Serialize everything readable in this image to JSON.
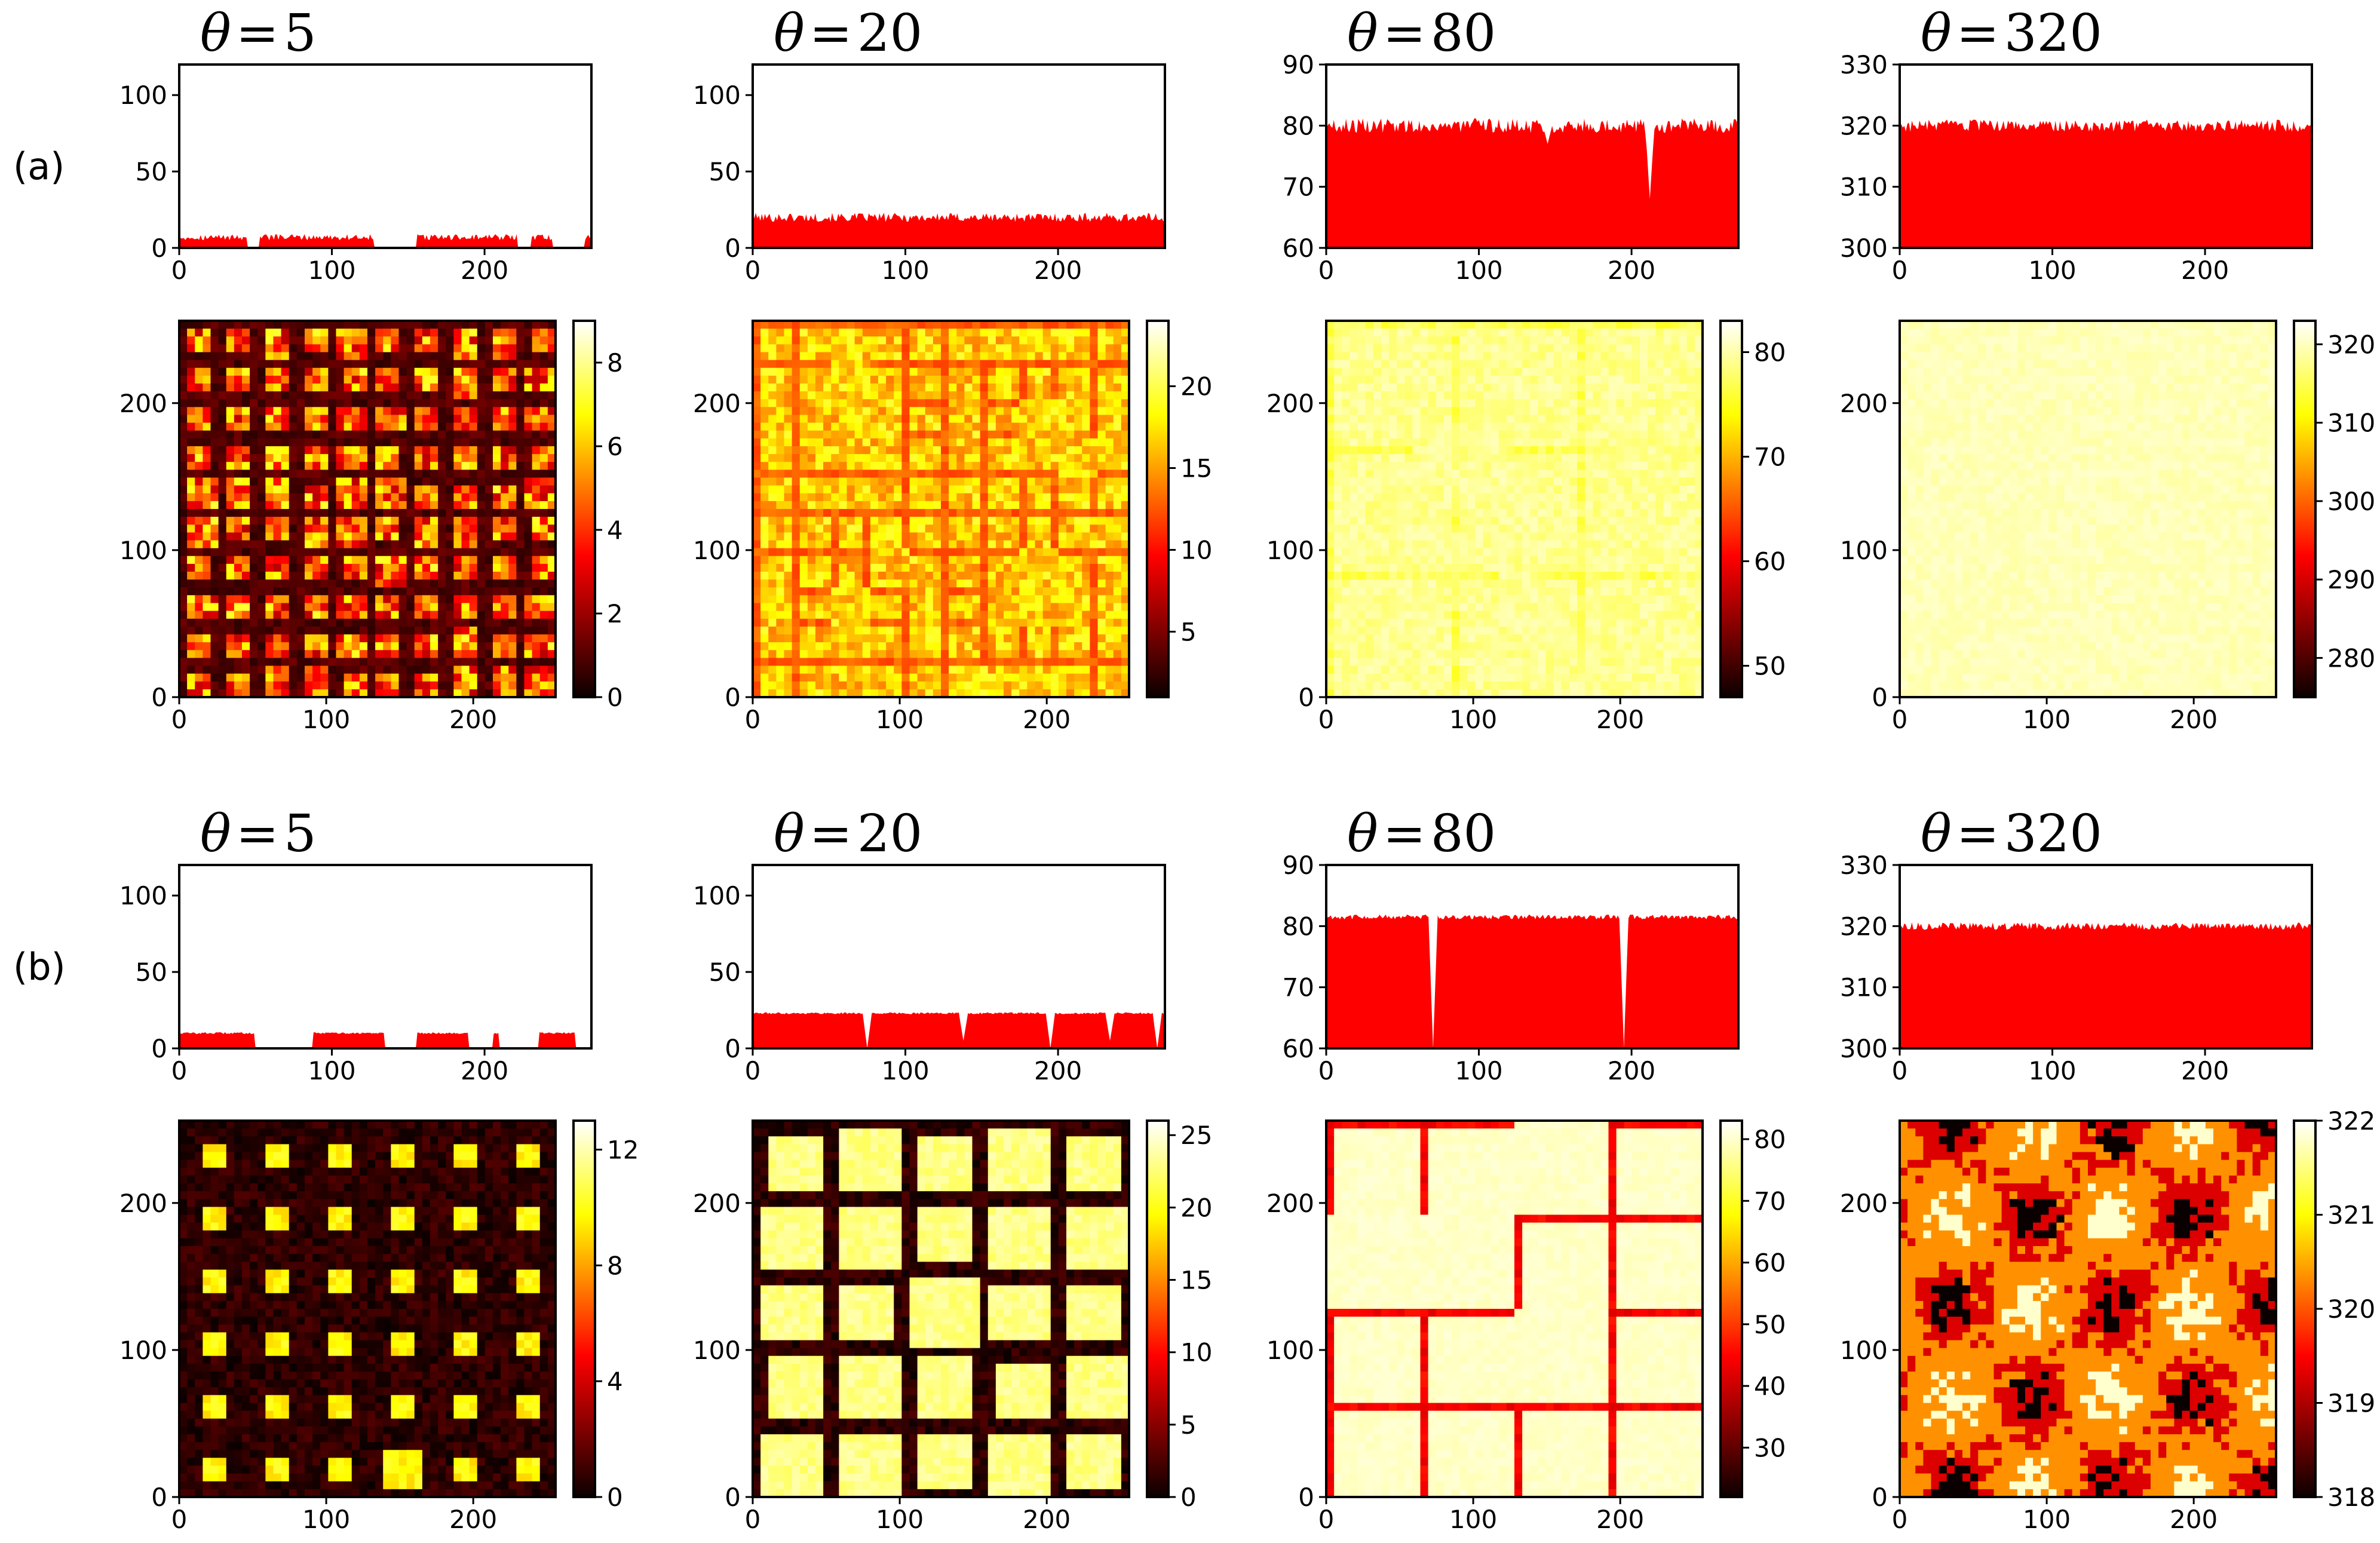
{
  "chart_data": {
    "type": "heatmap",
    "description_labels": [
      "(a)",
      "(b)"
    ],
    "rows": [
      {
        "label": "(a)",
        "panels": [
          {
            "title_symbol": "θ",
            "title_eq": "=",
            "title_value": "5",
            "profile": {
              "type": "area",
              "color": "#ff0000",
              "xlim": [
                0,
                270
              ],
              "ylim": [
                0,
                120
              ],
              "xticks": [
                "0",
                "100",
                "200"
              ],
              "yticks": [
                "0",
                "50",
                "100"
              ],
              "ytick_values": [
                0,
                50,
                100
              ],
              "base": 0,
              "level": 7,
              "noise": 2,
              "gaps": [
                [
                  45,
                  52
                ],
                [
                  128,
                  155
                ],
                [
                  222,
                  230
                ],
                [
                  245,
                  265
                ]
              ]
            },
            "map": {
              "type": "heatmap",
              "xlim": [
                0,
                256
              ],
              "ylim": [
                0,
                256
              ],
              "xticks": [
                "0",
                "100",
                "200"
              ],
              "yticks": [
                "0",
                "100",
                "200"
              ],
              "pattern": "grains",
              "cells": 10,
              "gap": 0.16,
              "noise": 0.55,
              "bg_value": 0.05,
              "seed": 11,
              "colorbar": {
                "min": 0,
                "max": 9,
                "ticks": [
                  "0",
                  "2",
                  "4",
                  "6",
                  "8"
                ],
                "tick_values": [
                  0,
                  2,
                  4,
                  6,
                  8
                ]
              }
            }
          },
          {
            "title_symbol": "θ",
            "title_eq": "=",
            "title_value": "20",
            "profile": {
              "type": "area",
              "color": "#ff0000",
              "xlim": [
                0,
                270
              ],
              "ylim": [
                0,
                120
              ],
              "xticks": [
                "0",
                "100",
                "200"
              ],
              "yticks": [
                "0",
                "50",
                "100"
              ],
              "ytick_values": [
                0,
                50,
                100
              ],
              "base": 0,
              "level": 20,
              "noise": 3,
              "gaps": []
            },
            "map": {
              "type": "heatmap",
              "xlim": [
                0,
                256
              ],
              "ylim": [
                0,
                256
              ],
              "xticks": [
                "0",
                "100",
                "200"
              ],
              "yticks": [
                "0",
                "100",
                "200"
              ],
              "pattern": "grains",
              "cells": 10,
              "gap": 0.07,
              "noise": 0.25,
              "bg_value": 0.45,
              "seed": 23,
              "colorbar": {
                "min": 1,
                "max": 24,
                "ticks": [
                  "5",
                  "10",
                  "15",
                  "20"
                ],
                "tick_values": [
                  5,
                  10,
                  15,
                  20
                ]
              }
            }
          },
          {
            "title_symbol": "θ",
            "title_eq": "=",
            "title_value": "80",
            "profile": {
              "type": "area",
              "color": "#ff0000",
              "xlim": [
                0,
                270
              ],
              "ylim": [
                60,
                90
              ],
              "xticks": [
                "0",
                "100",
                "200"
              ],
              "yticks": [
                "60",
                "70",
                "80",
                "90"
              ],
              "ytick_values": [
                60,
                70,
                80,
                90
              ],
              "base": 60,
              "level": 80,
              "noise": 1.2,
              "dips": [
                [
                  212,
                  68
                ],
                [
                  145,
                  77
                ]
              ]
            },
            "map": {
              "type": "heatmap",
              "xlim": [
                0,
                256
              ],
              "ylim": [
                0,
                256
              ],
              "xticks": [
                "0",
                "100",
                "200"
              ],
              "yticks": [
                "0",
                "100",
                "200"
              ],
              "pattern": "grains",
              "cells": 9,
              "gap": 0.02,
              "noise": 0.08,
              "bg_value": 0.78,
              "seed": 37,
              "base_value": 0.93,
              "colorbar": {
                "min": 47,
                "max": 83,
                "ticks": [
                  "50",
                  "60",
                  "70",
                  "80"
                ],
                "tick_values": [
                  50,
                  60,
                  70,
                  80
                ]
              }
            }
          },
          {
            "title_symbol": "θ",
            "title_eq": "=",
            "title_value": "320",
            "profile": {
              "type": "area",
              "color": "#ff0000",
              "xlim": [
                0,
                270
              ],
              "ylim": [
                300,
                330
              ],
              "xticks": [
                "0",
                "100",
                "200"
              ],
              "yticks": [
                "300",
                "310",
                "320",
                "330"
              ],
              "ytick_values": [
                300,
                310,
                320,
                330
              ],
              "base": 300,
              "level": 320,
              "noise": 1.0,
              "gaps": []
            },
            "map": {
              "type": "heatmap",
              "xlim": [
                0,
                256
              ],
              "ylim": [
                0,
                256
              ],
              "xticks": [
                "0",
                "100",
                "200"
              ],
              "yticks": [
                "0",
                "100",
                "200"
              ],
              "pattern": "smooth",
              "noise": 0.04,
              "base_value": 0.95,
              "seed": 41,
              "colorbar": {
                "min": 275,
                "max": 323,
                "ticks": [
                  "280",
                  "290",
                  "300",
                  "310",
                  "320"
                ],
                "tick_values": [
                  280,
                  290,
                  300,
                  310,
                  320
                ]
              }
            }
          }
        ]
      },
      {
        "label": "(b)",
        "panels": [
          {
            "title_symbol": "θ",
            "title_eq": "=",
            "title_value": "5",
            "profile": {
              "type": "area",
              "color": "#ff0000",
              "xlim": [
                0,
                270
              ],
              "ylim": [
                0,
                120
              ],
              "xticks": [
                "0",
                "100",
                "200"
              ],
              "yticks": [
                "0",
                "50",
                "100"
              ],
              "ytick_values": [
                0,
                50,
                100
              ],
              "base": 0,
              "level": 10,
              "noise": 0.6,
              "gaps": [
                [
                  50,
                  87
                ],
                [
                  135,
                  155
                ],
                [
                  190,
                  205
                ],
                [
                  210,
                  235
                ],
                [
                  260,
                  270
                ]
              ]
            },
            "map": {
              "type": "heatmap",
              "xlim": [
                0,
                256
              ],
              "ylim": [
                0,
                256
              ],
              "xticks": [
                "0",
                "100",
                "200"
              ],
              "yticks": [
                "0",
                "100",
                "200"
              ],
              "pattern": "grains",
              "cells": 6,
              "gap": 0.28,
              "noise": 0.12,
              "bg_value": 0.0,
              "seed": 5,
              "colorbar": {
                "min": 0,
                "max": 13,
                "ticks": [
                  "0",
                  "4",
                  "8",
                  "12"
                ],
                "tick_values": [
                  0,
                  4,
                  8,
                  12
                ]
              }
            }
          },
          {
            "title_symbol": "θ",
            "title_eq": "=",
            "title_value": "20",
            "profile": {
              "type": "area",
              "color": "#ff0000",
              "xlim": [
                0,
                270
              ],
              "ylim": [
                0,
                120
              ],
              "xticks": [
                "0",
                "100",
                "200"
              ],
              "yticks": [
                "0",
                "50",
                "100"
              ],
              "ytick_values": [
                0,
                50,
                100
              ],
              "base": 0,
              "level": 23,
              "noise": 0.6,
              "dips": [
                [
                  75,
                  0
                ],
                [
                  138,
                  5
                ],
                [
                  195,
                  0
                ],
                [
                  234,
                  5
                ],
                [
                  265,
                  0
                ]
              ]
            },
            "map": {
              "type": "heatmap",
              "xlim": [
                0,
                256
              ],
              "ylim": [
                0,
                256
              ],
              "xticks": [
                "0",
                "100",
                "200"
              ],
              "yticks": [
                "0",
                "100",
                "200"
              ],
              "pattern": "grains",
              "cells": 5,
              "gap": 0.1,
              "noise": 0.08,
              "bg_value": 0.0,
              "seed": 17,
              "base_value": 0.92,
              "colorbar": {
                "min": 0,
                "max": 26,
                "ticks": [
                  "0",
                  "5",
                  "10",
                  "15",
                  "20",
                  "25"
                ],
                "tick_values": [
                  0,
                  5,
                  10,
                  15,
                  20,
                  25
                ]
              }
            }
          },
          {
            "title_symbol": "θ",
            "title_eq": "=",
            "title_value": "80",
            "profile": {
              "type": "area",
              "color": "#ff0000",
              "xlim": [
                0,
                270
              ],
              "ylim": [
                60,
                90
              ],
              "xticks": [
                "0",
                "100",
                "200"
              ],
              "yticks": [
                "60",
                "70",
                "80",
                "90"
              ],
              "ytick_values": [
                60,
                70,
                80,
                90
              ],
              "base": 60,
              "level": 81.5,
              "noise": 0.4,
              "dips": [
                [
                  70,
                  60
                ],
                [
                  195,
                  60
                ]
              ]
            },
            "map": {
              "type": "heatmap",
              "xlim": [
                0,
                256
              ],
              "ylim": [
                0,
                256
              ],
              "xticks": [
                "0",
                "100",
                "200"
              ],
              "yticks": [
                "0",
                "100",
                "200"
              ],
              "pattern": "grains",
              "cells": 4,
              "gap": 0.02,
              "noise": 0.03,
              "bg_value": 0.3,
              "seed": 29,
              "base_value": 0.96,
              "colorbar": {
                "min": 22,
                "max": 83,
                "ticks": [
                  "30",
                  "40",
                  "50",
                  "60",
                  "70",
                  "80"
                ],
                "tick_values": [
                  30,
                  40,
                  50,
                  60,
                  70,
                  80
                ]
              }
            }
          },
          {
            "title_symbol": "θ",
            "title_eq": "=",
            "title_value": "320",
            "profile": {
              "type": "area",
              "color": "#ff0000",
              "xlim": [
                0,
                270
              ],
              "ylim": [
                300,
                330
              ],
              "xticks": [
                "0",
                "100",
                "200"
              ],
              "yticks": [
                "300",
                "310",
                "320",
                "330"
              ],
              "ytick_values": [
                300,
                310,
                320,
                330
              ],
              "base": 300,
              "level": 320,
              "noise": 0.6,
              "gaps": []
            },
            "map": {
              "type": "heatmap",
              "xlim": [
                0,
                256
              ],
              "ylim": [
                0,
                256
              ],
              "xticks": [
                "0",
                "100",
                "200"
              ],
              "yticks": [
                "0",
                "100",
                "200"
              ],
              "pattern": "levels",
              "seed": 53,
              "levels": [
                0.0,
                0.3,
                0.58,
                0.95
              ],
              "colorbar": {
                "min": 318,
                "max": 322,
                "ticks": [
                  "318",
                  "319",
                  "320",
                  "321",
                  "322"
                ],
                "tick_values": [
                  318,
                  319,
                  320,
                  321,
                  322
                ]
              }
            }
          }
        ]
      }
    ]
  }
}
